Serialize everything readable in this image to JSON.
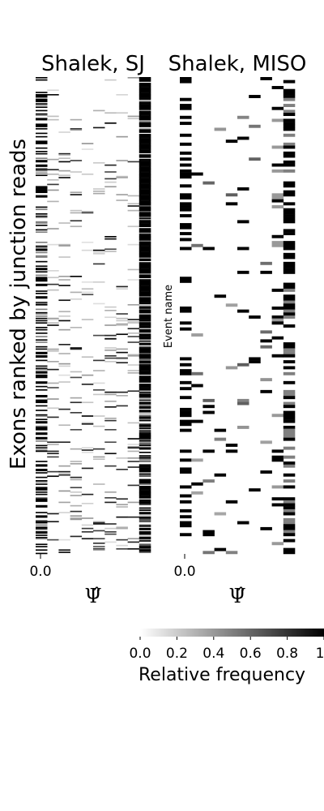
{
  "chart_data": [
    {
      "type": "heatmap",
      "title": "Shalek, SJ",
      "xlabel": "Ψ̂",
      "ylabel": "Exons ranked by junction reads",
      "x_tick_labels": [
        "0.0"
      ],
      "n_bins": 10,
      "n_rows": 420,
      "value_range": [
        0,
        1
      ],
      "colormap": "greys",
      "pattern": "most events concentrated in the highest Ψ̂ bin (dense black column at right), sparse left-edge column, light grey scattered intermediate bins; more intermediate bins in the lower-ranked exons"
    },
    {
      "type": "heatmap",
      "title": "Shalek, MISO",
      "xlabel": "Ψ̂",
      "ylabel": "Event name",
      "x_tick_labels": [
        "0.0"
      ],
      "n_bins": 10,
      "n_rows": 160,
      "value_range": [
        0,
        1
      ],
      "colormap": "greys",
      "pattern": "black bars in left-most and right-most bins, sparse black/grey marks in middle bins"
    }
  ],
  "colorbar": {
    "label": "Relative frequency",
    "range": [
      0,
      1
    ],
    "ticks": [
      "0.0",
      "0.2",
      "0.4",
      "0.6",
      "0.8",
      "1"
    ]
  }
}
